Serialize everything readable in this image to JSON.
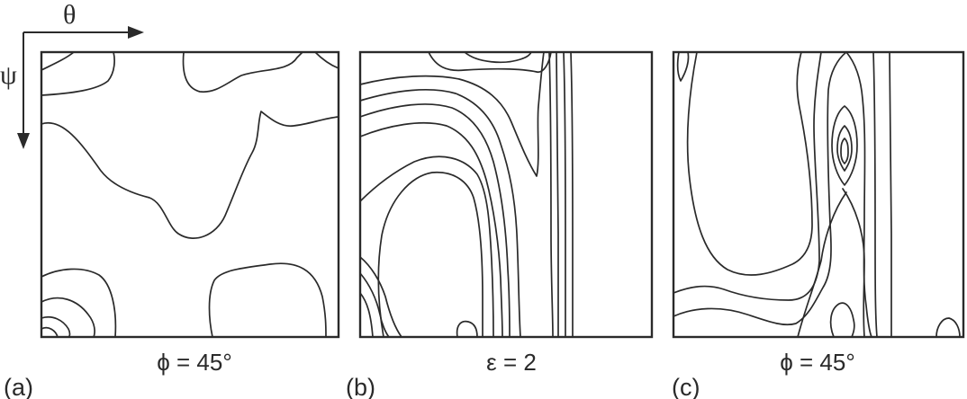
{
  "axes": {
    "horizontal_symbol": "θ",
    "vertical_symbol": "ψ"
  },
  "panels": [
    {
      "letter": "(a)",
      "caption": "ϕ = 45°"
    },
    {
      "letter": "(b)",
      "caption": "ε = 2"
    },
    {
      "letter": "(c)",
      "caption": "ϕ = 45°"
    }
  ],
  "colors": {
    "ink": "#2a2a2a",
    "background": "#ffffff"
  }
}
